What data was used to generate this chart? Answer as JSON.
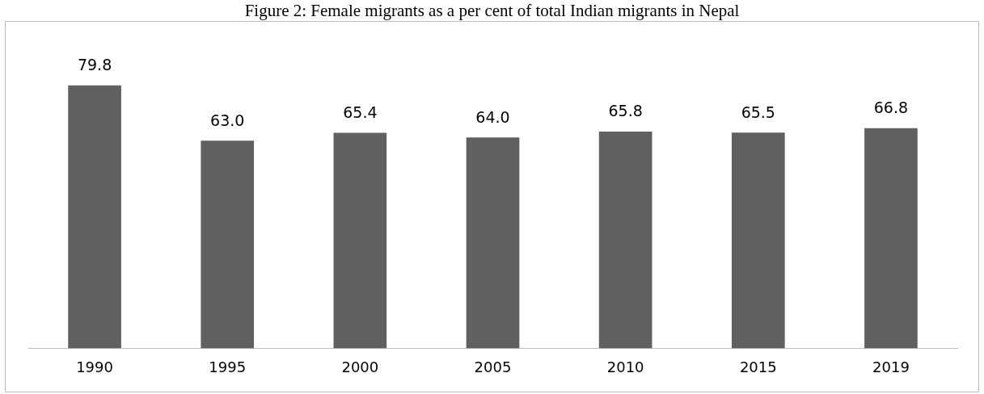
{
  "chart_data": {
    "type": "bar",
    "title": "Figure 2: Female migrants as a per cent of total Indian migrants in Nepal",
    "categories": [
      "1990",
      "1995",
      "2000",
      "2005",
      "2010",
      "2015",
      "2019"
    ],
    "values": [
      79.8,
      63.0,
      65.4,
      64.0,
      65.8,
      65.5,
      66.8
    ],
    "value_labels": [
      "79.8",
      "63.0",
      "65.4",
      "64.0",
      "65.8",
      "65.5",
      "66.8"
    ],
    "color": "#606060",
    "tick_labels": "x",
    "grid": false,
    "legend": false
  }
}
